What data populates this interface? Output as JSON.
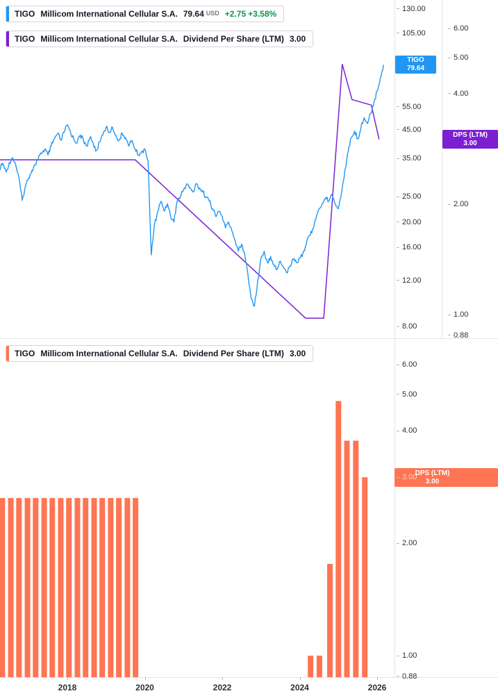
{
  "legends": {
    "price": {
      "symbol": "TIGO",
      "name": "Millicom International Cellular S.A.",
      "value": "79.64",
      "currency": "USD",
      "change": "+2.75",
      "change_pct": "+3.58%"
    },
    "dps_overlay": {
      "symbol": "TIGO",
      "name": "Millicom International Cellular S.A.",
      "metric": "Dividend Per Share (LTM)",
      "value": "3.00"
    },
    "dps_panel": {
      "symbol": "TIGO",
      "name": "Millicom International Cellular S.A.",
      "metric": "Dividend Per Share (LTM)",
      "value": "3.00"
    }
  },
  "badges": {
    "price": {
      "title": "TIGO",
      "value": "79.64"
    },
    "dps_overlay": {
      "title": "DPS (LTM)",
      "value": "3.00"
    },
    "dps_panel": {
      "title": "DPS (LTM)",
      "value": "3.00"
    }
  },
  "colors": {
    "price_line": "#2196f3",
    "dps_line": "#7c1fd2",
    "dps_bar": "#ff7452",
    "gain_green": "#089950",
    "axis_text": "#2a2e39",
    "grid_line": "#e0e3eb"
  },
  "x_axis": {
    "labels": [
      "2018",
      "2020",
      "2022",
      "2024",
      "2026"
    ]
  },
  "chart_data": [
    {
      "type": "line",
      "name": "TIGO share price (USD)",
      "color": "#2196f3",
      "yscale": "log",
      "x_start": 2016.25,
      "x_step_years": 0.083333,
      "values": [
        32,
        33.5,
        31,
        33.8,
        35.2,
        33,
        29.5,
        24.2,
        27.5,
        29.5,
        31.5,
        33,
        35,
        36.5,
        38,
        36,
        39,
        41.5,
        43.5,
        41,
        44,
        47,
        44,
        41.5,
        40,
        43,
        41,
        39,
        42,
        40,
        37.5,
        40.5,
        43,
        46,
        44,
        46,
        43,
        41,
        43.5,
        42,
        39,
        41,
        38,
        36,
        37,
        38,
        34.5,
        15,
        19.5,
        22,
        24,
        22,
        23.5,
        21,
        20,
        24,
        25,
        26.5,
        28,
        27,
        26,
        28,
        27,
        26,
        25,
        24,
        22.5,
        21,
        22,
        21,
        19,
        20,
        18.5,
        17,
        15.5,
        16.5,
        15,
        12.5,
        10.2,
        9.6,
        12,
        14.5,
        15.5,
        14,
        14.8,
        13.8,
        13.2,
        14.2,
        13.4,
        12.8,
        13.6,
        14.4,
        14,
        14.6,
        15.2,
        16.4,
        17.8,
        18.8,
        20.5,
        22.4,
        23.6,
        24.8,
        24,
        25.5,
        23.5,
        22.5,
        26,
        31.5,
        37,
        42,
        44.5,
        41.5,
        46,
        50,
        47.5,
        52,
        57,
        63,
        71,
        79.64
      ],
      "last_value": 79.64,
      "y_ticks": [
        "130.00",
        "105.00",
        "55.00",
        "45.00",
        "35.00",
        "25.00",
        "20.00",
        "16.00",
        "12.00",
        "8.00"
      ]
    },
    {
      "type": "line",
      "name": "Dividend Per Share (LTM) overlay",
      "color": "#7c1fd2",
      "yscale": "log",
      "points": [
        [
          2016.25,
          2.64
        ],
        [
          2019.75,
          2.64
        ],
        [
          2024.15,
          0.98
        ],
        [
          2024.62,
          0.98
        ],
        [
          2025.1,
          4.8
        ],
        [
          2025.35,
          3.85
        ],
        [
          2025.85,
          3.72
        ],
        [
          2026.05,
          3.0
        ]
      ],
      "last_value": 3.0,
      "y_ticks": [
        "6.00",
        "5.00",
        "4.00",
        "2.00",
        "1.00",
        "0.88"
      ]
    },
    {
      "type": "bar",
      "name": "Dividend Per Share (LTM)",
      "color": "#ff7452",
      "yscale": "log",
      "bars": [
        [
          2016.32,
          2.64
        ],
        [
          2016.54,
          2.64
        ],
        [
          2016.75,
          2.64
        ],
        [
          2016.97,
          2.64
        ],
        [
          2017.18,
          2.64
        ],
        [
          2017.4,
          2.64
        ],
        [
          2017.61,
          2.64
        ],
        [
          2017.83,
          2.64
        ],
        [
          2018.04,
          2.64
        ],
        [
          2018.26,
          2.64
        ],
        [
          2018.47,
          2.64
        ],
        [
          2018.69,
          2.64
        ],
        [
          2018.9,
          2.64
        ],
        [
          2019.12,
          2.64
        ],
        [
          2019.33,
          2.64
        ],
        [
          2019.55,
          2.64
        ],
        [
          2019.76,
          2.64
        ],
        [
          2024.28,
          1.0
        ],
        [
          2024.51,
          1.0
        ],
        [
          2024.78,
          1.76
        ],
        [
          2025.0,
          4.8
        ],
        [
          2025.22,
          3.76
        ],
        [
          2025.45,
          3.76
        ],
        [
          2025.68,
          3.0
        ]
      ],
      "last_value": 3.0,
      "y_ticks": [
        "6.00",
        "5.00",
        "4.00",
        "3.00",
        "2.00",
        "1.00",
        "0.88"
      ]
    }
  ]
}
